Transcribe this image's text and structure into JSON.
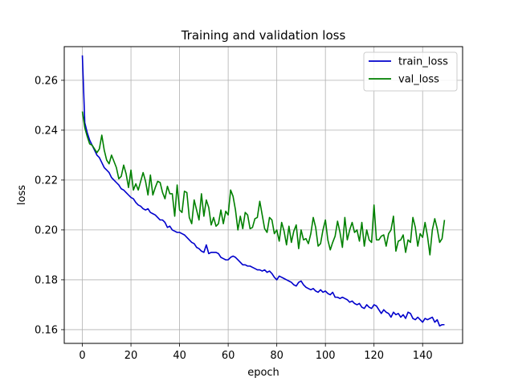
{
  "chart_data": {
    "type": "line",
    "title": "Training and validation loss",
    "xlabel": "epoch",
    "ylabel": "loss",
    "xlim": [
      -7.45,
      156.45
    ],
    "ylim": [
      0.1545,
      0.2735
    ],
    "xticks": [
      0,
      20,
      40,
      60,
      80,
      100,
      120,
      140
    ],
    "yticks": [
      0.16,
      0.18,
      0.2,
      0.22,
      0.24,
      0.26
    ],
    "ytick_labels": [
      "0.16",
      "0.18",
      "0.20",
      "0.22",
      "0.24",
      "0.26"
    ],
    "grid": true,
    "legend_position": "top-right",
    "x": [
      0,
      1,
      2,
      3,
      4,
      5,
      6,
      7,
      8,
      9,
      10,
      11,
      12,
      13,
      14,
      15,
      16,
      17,
      18,
      19,
      20,
      21,
      22,
      23,
      24,
      25,
      26,
      27,
      28,
      29,
      30,
      31,
      32,
      33,
      34,
      35,
      36,
      37,
      38,
      39,
      40,
      41,
      42,
      43,
      44,
      45,
      46,
      47,
      48,
      49,
      50,
      51,
      52,
      53,
      54,
      55,
      56,
      57,
      58,
      59,
      60,
      61,
      62,
      63,
      64,
      65,
      66,
      67,
      68,
      69,
      70,
      71,
      72,
      73,
      74,
      75,
      76,
      77,
      78,
      79,
      80,
      81,
      82,
      83,
      84,
      85,
      86,
      87,
      88,
      89,
      90,
      91,
      92,
      93,
      94,
      95,
      96,
      97,
      98,
      99,
      100,
      101,
      102,
      103,
      104,
      105,
      106,
      107,
      108,
      109,
      110,
      111,
      112,
      113,
      114,
      115,
      116,
      117,
      118,
      119,
      120,
      121,
      122,
      123,
      124,
      125,
      126,
      127,
      128,
      129,
      130,
      131,
      132,
      133,
      134,
      135,
      136,
      137,
      138,
      139,
      140,
      141,
      142,
      143,
      144,
      145,
      146,
      147,
      148,
      149
    ],
    "series": [
      {
        "name": "train_loss",
        "color": "#0000cc",
        "values": [
          0.27,
          0.243,
          0.239,
          0.236,
          0.234,
          0.232,
          0.23,
          0.229,
          0.227,
          0.225,
          0.224,
          0.223,
          0.221,
          0.22,
          0.219,
          0.218,
          0.2165,
          0.216,
          0.215,
          0.214,
          0.213,
          0.2125,
          0.211,
          0.21,
          0.2095,
          0.2085,
          0.208,
          0.2085,
          0.207,
          0.2065,
          0.206,
          0.205,
          0.204,
          0.204,
          0.203,
          0.201,
          0.2015,
          0.2,
          0.1995,
          0.199,
          0.199,
          0.1985,
          0.198,
          0.197,
          0.196,
          0.195,
          0.1945,
          0.193,
          0.1925,
          0.1915,
          0.191,
          0.194,
          0.1905,
          0.191,
          0.191,
          0.191,
          0.1905,
          0.189,
          0.1885,
          0.188,
          0.188,
          0.189,
          0.1895,
          0.189,
          0.188,
          0.187,
          0.186,
          0.186,
          0.1855,
          0.1855,
          0.185,
          0.1845,
          0.184,
          0.184,
          0.1835,
          0.184,
          0.183,
          0.1835,
          0.1825,
          0.181,
          0.18,
          0.1815,
          0.181,
          0.1805,
          0.18,
          0.1795,
          0.179,
          0.178,
          0.1775,
          0.179,
          0.1795,
          0.178,
          0.177,
          0.1765,
          0.176,
          0.1765,
          0.1755,
          0.175,
          0.176,
          0.175,
          0.1755,
          0.1745,
          0.174,
          0.175,
          0.173,
          0.173,
          0.1725,
          0.173,
          0.1725,
          0.172,
          0.171,
          0.1715,
          0.1705,
          0.17,
          0.1705,
          0.169,
          0.1685,
          0.17,
          0.169,
          0.1685,
          0.17,
          0.1695,
          0.168,
          0.1665,
          0.168,
          0.167,
          0.1665,
          0.165,
          0.167,
          0.166,
          0.1665,
          0.165,
          0.166,
          0.1645,
          0.167,
          0.1665,
          0.1645,
          0.164,
          0.165,
          0.164,
          0.163,
          0.1645,
          0.164,
          0.1645,
          0.165,
          0.163,
          0.164,
          0.1615,
          0.162,
          0.162
        ]
      },
      {
        "name": "val_loss",
        "color": "#008000",
        "values": [
          0.2475,
          0.241,
          0.2375,
          0.2345,
          0.234,
          0.2325,
          0.231,
          0.2325,
          0.238,
          0.232,
          0.228,
          0.2265,
          0.23,
          0.2275,
          0.225,
          0.2205,
          0.2215,
          0.226,
          0.2225,
          0.217,
          0.224,
          0.216,
          0.2185,
          0.216,
          0.2195,
          0.223,
          0.2195,
          0.214,
          0.222,
          0.214,
          0.217,
          0.2195,
          0.219,
          0.215,
          0.2125,
          0.2175,
          0.2145,
          0.2145,
          0.2055,
          0.218,
          0.208,
          0.207,
          0.2155,
          0.215,
          0.205,
          0.2025,
          0.212,
          0.208,
          0.204,
          0.2145,
          0.2055,
          0.212,
          0.209,
          0.202,
          0.205,
          0.2015,
          0.2025,
          0.208,
          0.2025,
          0.2075,
          0.206,
          0.216,
          0.2135,
          0.208,
          0.2,
          0.2055,
          0.2005,
          0.207,
          0.206,
          0.2005,
          0.201,
          0.2045,
          0.205,
          0.2115,
          0.206,
          0.2005,
          0.199,
          0.205,
          0.204,
          0.1985,
          0.2,
          0.1955,
          0.203,
          0.1995,
          0.194,
          0.2015,
          0.195,
          0.1995,
          0.202,
          0.1925,
          0.2,
          0.196,
          0.1965,
          0.1945,
          0.1985,
          0.205,
          0.201,
          0.1935,
          0.1945,
          0.2,
          0.204,
          0.196,
          0.192,
          0.195,
          0.1975,
          0.2035,
          0.199,
          0.193,
          0.205,
          0.196,
          0.2,
          0.203,
          0.199,
          0.2,
          0.1955,
          0.203,
          0.1935,
          0.2,
          0.196,
          0.195,
          0.21,
          0.196,
          0.196,
          0.1975,
          0.198,
          0.1935,
          0.1985,
          0.2,
          0.2055,
          0.1915,
          0.1955,
          0.196,
          0.198,
          0.191,
          0.196,
          0.195,
          0.205,
          0.201,
          0.1935,
          0.1985,
          0.197,
          0.203,
          0.1975,
          0.19,
          0.2,
          0.2045,
          0.2005,
          0.195,
          0.1965,
          0.204
        ]
      }
    ]
  }
}
